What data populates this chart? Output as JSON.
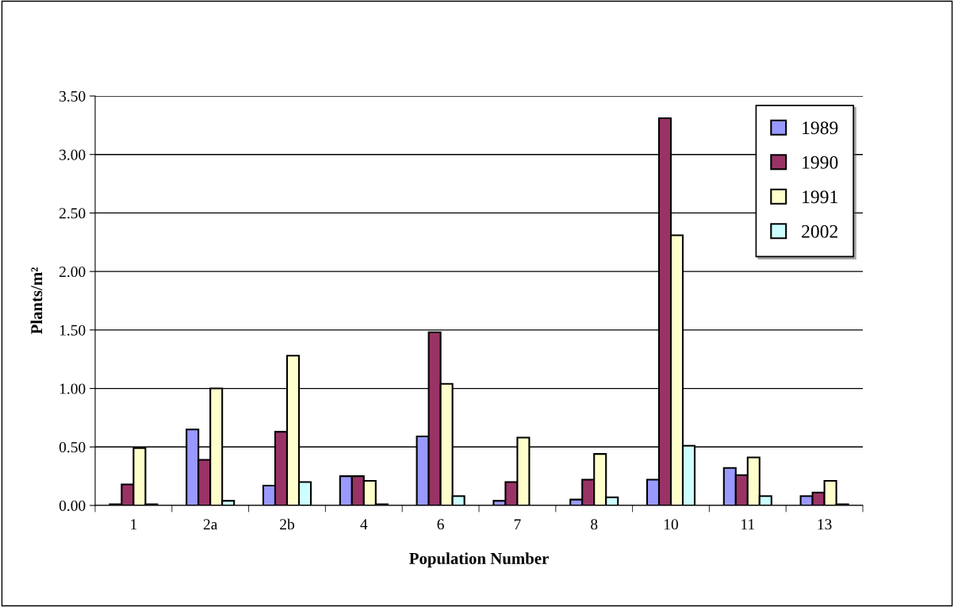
{
  "chart_data": {
    "type": "bar",
    "xlabel": "Population Number",
    "ylabel": "Plants/m²",
    "categories": [
      "1",
      "2a",
      "2b",
      "4",
      "6",
      "7",
      "8",
      "10",
      "11",
      "13"
    ],
    "series": [
      {
        "name": "1989",
        "color": "#9999ff",
        "values": [
          0.01,
          0.65,
          0.17,
          0.25,
          0.59,
          0.04,
          0.05,
          0.22,
          0.32,
          0.08
        ]
      },
      {
        "name": "1990",
        "color": "#993366",
        "values": [
          0.18,
          0.39,
          0.63,
          0.25,
          1.48,
          0.2,
          0.22,
          3.31,
          0.26,
          0.11
        ]
      },
      {
        "name": "1991",
        "color": "#ffffcc",
        "values": [
          0.49,
          1.0,
          1.28,
          0.21,
          1.04,
          0.58,
          0.44,
          2.31,
          0.41,
          0.21
        ]
      },
      {
        "name": "2002",
        "color": "#ccffff",
        "values": [
          0.01,
          0.04,
          0.2,
          0.01,
          0.08,
          null,
          0.07,
          0.51,
          0.08,
          0.01
        ]
      }
    ],
    "ylim": [
      0,
      3.5
    ],
    "yticks": [
      {
        "value": 0,
        "label": "0.00"
      },
      {
        "value": 0.5,
        "label": "0.50"
      },
      {
        "value": 1,
        "label": "1.00"
      },
      {
        "value": 1.5,
        "label": "1.50"
      },
      {
        "value": 2,
        "label": "2.00"
      },
      {
        "value": 2.5,
        "label": "2.50"
      },
      {
        "value": 3,
        "label": "3.00"
      },
      {
        "value": 3.5,
        "label": "3.50"
      }
    ],
    "grid": "y",
    "legend": "top right"
  }
}
